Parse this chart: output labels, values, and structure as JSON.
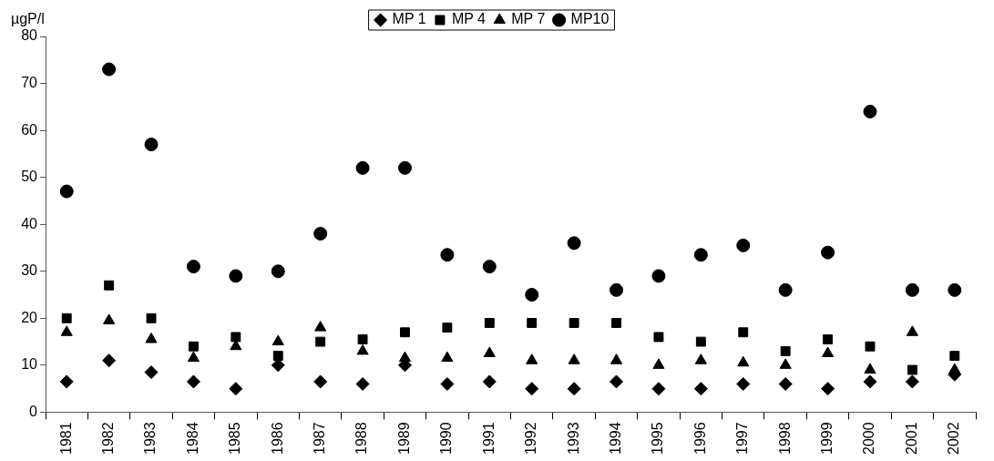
{
  "chart_data": {
    "type": "scatter",
    "ylabel": "µgP/l",
    "legend": "top",
    "grid": false,
    "categories": [
      "1981",
      "1982",
      "1983",
      "1984",
      "1985",
      "1986",
      "1987",
      "1988",
      "1989",
      "1990",
      "1991",
      "1992",
      "1993",
      "1994",
      "1995",
      "1996",
      "1997",
      "1998",
      "1999",
      "2000",
      "2001",
      "2002"
    ],
    "ylim": [
      0,
      80
    ],
    "yticks": [
      0,
      10,
      20,
      30,
      40,
      50,
      60,
      70,
      80
    ],
    "series": [
      {
        "name": "MP 1",
        "color": "#000000",
        "marker": "diamond",
        "values": [
          6.5,
          11,
          8.5,
          6.5,
          5,
          10,
          6.5,
          6,
          10,
          6,
          6.5,
          5,
          5,
          6.5,
          5,
          5,
          6,
          6,
          5,
          6.5,
          6.5,
          8
        ]
      },
      {
        "name": "MP 4",
        "color": "#000000",
        "marker": "square",
        "values": [
          20,
          27,
          20,
          14,
          16,
          12,
          15,
          15.5,
          17,
          18,
          19,
          19,
          19,
          19,
          16,
          15,
          17,
          13,
          15.5,
          14,
          9,
          12
        ]
      },
      {
        "name": "MP 7",
        "color": "#000000",
        "marker": "triangle",
        "values": [
          17,
          19.5,
          15.5,
          11.5,
          14,
          15,
          18,
          13,
          11.5,
          11.5,
          12.5,
          11,
          11,
          11,
          10,
          11,
          10.5,
          10,
          12.5,
          9,
          17,
          9
        ]
      },
      {
        "name": "MP10",
        "color": "#000000",
        "marker": "circle",
        "values": [
          47,
          73,
          57,
          31,
          29,
          30,
          38,
          52,
          52,
          33.5,
          31,
          25,
          36,
          26,
          29,
          33.5,
          35.5,
          26,
          34,
          64,
          26,
          26
        ]
      }
    ]
  }
}
